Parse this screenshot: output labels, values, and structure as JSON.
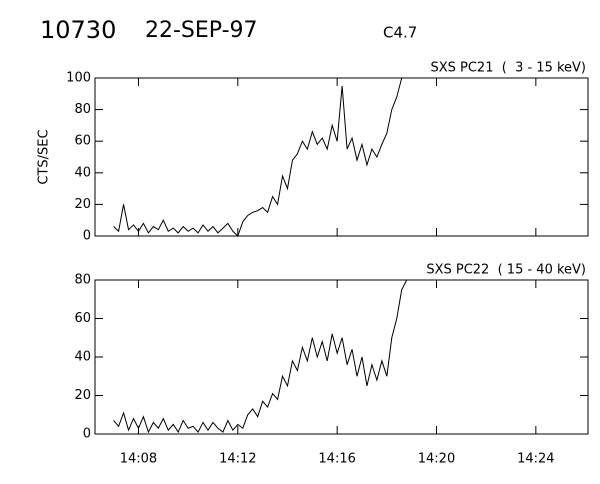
{
  "header": {
    "id": "10730",
    "date": "22-SEP-97",
    "class": "C4.7"
  },
  "chart_data": [
    {
      "type": "line",
      "title": "SXS PC21  (  3 - 15 keV)",
      "ylabel": "CTS/SEC",
      "xlim": [
        846.25,
        866.1
      ],
      "xticks": [
        848,
        852,
        856,
        860,
        864
      ],
      "ylim": [
        0,
        100
      ],
      "yticks": [
        0,
        20,
        40,
        60,
        80,
        100
      ],
      "x": [
        847.0,
        847.2,
        847.4,
        847.6,
        847.8,
        848.0,
        848.2,
        848.4,
        848.6,
        848.8,
        849.0,
        849.2,
        849.4,
        849.6,
        849.8,
        850.0,
        850.2,
        850.4,
        850.6,
        850.8,
        851.0,
        851.2,
        851.4,
        851.6,
        851.8,
        852.0,
        852.2,
        852.4,
        852.6,
        852.8,
        853.0,
        853.2,
        853.4,
        853.6,
        853.8,
        854.0,
        854.2,
        854.4,
        854.6,
        854.8,
        855.0,
        855.2,
        855.4,
        855.6,
        855.8,
        856.0,
        856.2,
        856.4,
        856.6,
        856.8,
        857.0,
        857.2,
        857.4,
        857.6,
        857.8,
        858.0,
        858.2,
        858.4,
        858.6,
        858.8
      ],
      "series": [
        {
          "name": "PC21",
          "color": "#000000",
          "values": [
            6,
            3,
            20,
            4,
            7,
            3,
            8,
            2,
            6,
            4,
            10,
            3,
            5,
            2,
            6,
            3,
            5,
            2,
            7,
            3,
            6,
            2,
            5,
            8,
            3,
            0,
            9,
            13,
            15,
            16,
            18,
            15,
            25,
            20,
            38,
            30,
            48,
            52,
            60,
            55,
            66,
            58,
            62,
            55,
            70,
            60,
            95,
            55,
            62,
            48,
            58,
            45,
            55,
            50,
            58,
            65,
            80,
            88,
            100,
            100
          ]
        }
      ]
    },
    {
      "type": "line",
      "title": "SXS PC22  ( 15 - 40 keV)",
      "xlim": [
        846.25,
        866.1
      ],
      "xticks": [
        {
          "value": 848,
          "label": "14:08"
        },
        {
          "value": 852,
          "label": "14:12"
        },
        {
          "value": 856,
          "label": "14:16"
        },
        {
          "value": 860,
          "label": "14:20"
        },
        {
          "value": 864,
          "label": "14:24"
        }
      ],
      "ylim": [
        0,
        80
      ],
      "yticks": [
        0,
        20,
        40,
        60,
        80
      ],
      "x": [
        847.0,
        847.2,
        847.4,
        847.6,
        847.8,
        848.0,
        848.2,
        848.4,
        848.6,
        848.8,
        849.0,
        849.2,
        849.4,
        849.6,
        849.8,
        850.0,
        850.2,
        850.4,
        850.6,
        850.8,
        851.0,
        851.2,
        851.4,
        851.6,
        851.8,
        852.0,
        852.2,
        852.4,
        852.6,
        852.8,
        853.0,
        853.2,
        853.4,
        853.6,
        853.8,
        854.0,
        854.2,
        854.4,
        854.6,
        854.8,
        855.0,
        855.2,
        855.4,
        855.6,
        855.8,
        856.0,
        856.2,
        856.4,
        856.6,
        856.8,
        857.0,
        857.2,
        857.4,
        857.6,
        857.8,
        858.0,
        858.2,
        858.4,
        858.6,
        858.8
      ],
      "series": [
        {
          "name": "PC22",
          "color": "#000000",
          "values": [
            7,
            4,
            11,
            2,
            8,
            3,
            9,
            1,
            6,
            3,
            8,
            2,
            5,
            1,
            7,
            3,
            4,
            1,
            6,
            2,
            6,
            3,
            1,
            7,
            2,
            5,
            3,
            10,
            13,
            9,
            17,
            14,
            21,
            18,
            30,
            25,
            38,
            33,
            45,
            38,
            50,
            40,
            48,
            38,
            52,
            42,
            50,
            36,
            44,
            30,
            40,
            25,
            36,
            28,
            38,
            30,
            50,
            60,
            75,
            80
          ]
        }
      ]
    }
  ]
}
